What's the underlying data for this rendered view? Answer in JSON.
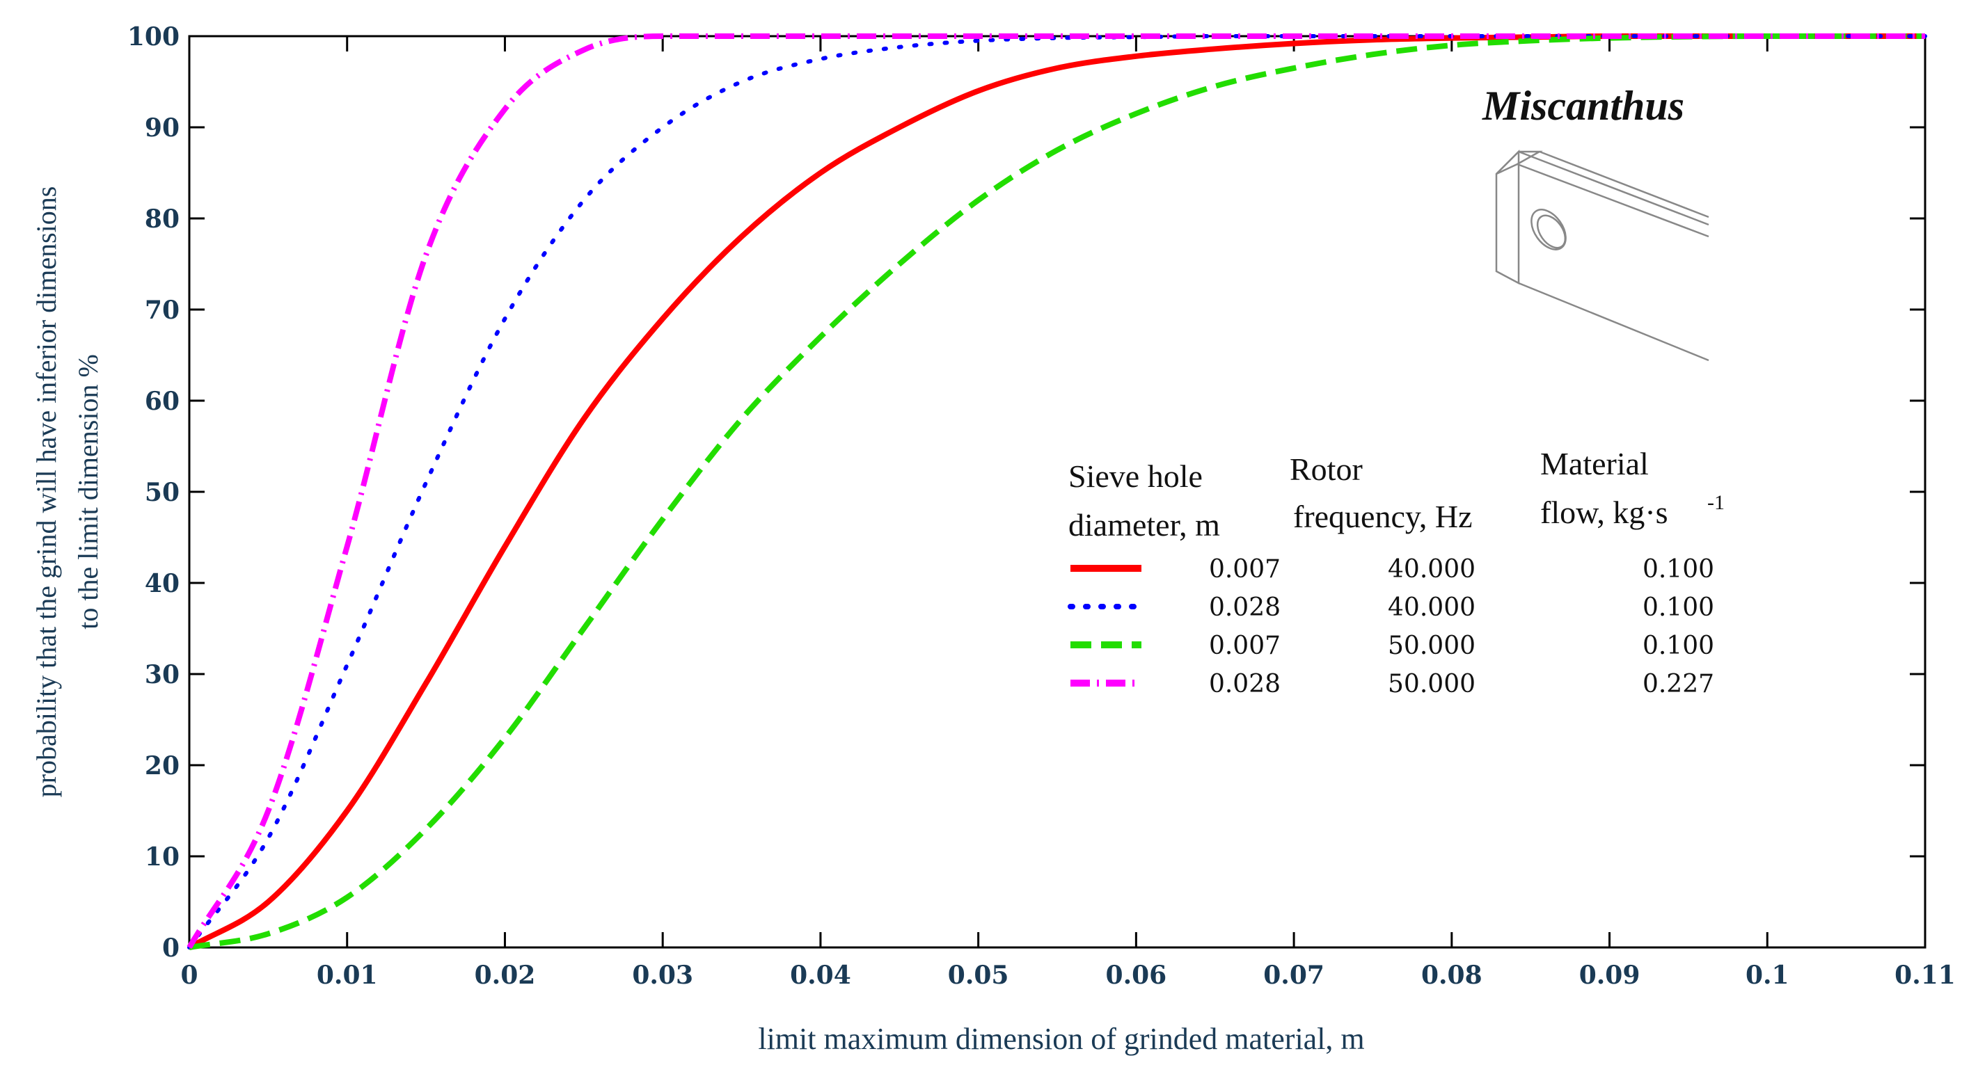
{
  "chart_data": {
    "type": "line",
    "title": "",
    "annotation": "Miscanthus",
    "xlabel": "limit maximum dimension of grinded material, m",
    "ylabel_lines": [
      "probability that the grind will have inferior dimensions",
      "to the limit dimension %"
    ],
    "xlim": [
      0,
      0.11
    ],
    "ylim": [
      0,
      100
    ],
    "x_ticks": [
      0,
      0.01,
      0.02,
      0.03,
      0.04,
      0.05,
      0.06,
      0.07,
      0.08,
      0.09,
      0.1,
      0.11
    ],
    "x_tick_labels": [
      "0",
      "0.01",
      "0.02",
      "0.03",
      "0.04",
      "0.05",
      "0.06",
      "0.07",
      "0.08",
      "0.09",
      "0.1",
      "0.11"
    ],
    "y_ticks": [
      0,
      10,
      20,
      30,
      40,
      50,
      60,
      70,
      80,
      90,
      100
    ],
    "y_tick_labels": [
      "0",
      "10",
      "20",
      "30",
      "40",
      "50",
      "60",
      "70",
      "80",
      "90",
      "100"
    ],
    "x": [
      0,
      0.005,
      0.01,
      0.015,
      0.02,
      0.025,
      0.03,
      0.035,
      0.04,
      0.045,
      0.05,
      0.055,
      0.06,
      0.065,
      0.07,
      0.075,
      0.08,
      0.085,
      0.09,
      0.1,
      0.11
    ],
    "legend": {
      "position": "center-right",
      "headers": [
        [
          "Sieve hole",
          "diameter, m"
        ],
        [
          "Rotor",
          "frequency, Hz"
        ],
        [
          "Material",
          "flow, kg·s"
        ]
      ],
      "flow_exponent": "-1"
    },
    "series": [
      {
        "name": "0.007 m / 40.000 Hz / 0.100",
        "sieve": "0.007",
        "frequency": "40.000",
        "flow": "0.100",
        "color": "#ff0000",
        "style": "solid",
        "values": [
          0,
          5,
          15,
          29,
          44,
          58,
          69,
          78,
          85,
          90,
          94,
          96.5,
          97.8,
          98.6,
          99.2,
          99.6,
          99.8,
          99.9,
          100,
          100,
          100
        ]
      },
      {
        "name": "0.028 m / 40.000 Hz / 0.100",
        "sieve": "0.028",
        "frequency": "40.000",
        "flow": "0.100",
        "color": "#0000ff",
        "style": "dotted",
        "values": [
          0,
          12,
          31,
          51,
          69,
          82,
          90,
          95,
          97.5,
          98.8,
          99.5,
          99.8,
          99.9,
          100,
          100,
          100,
          100,
          100,
          100,
          100,
          100
        ]
      },
      {
        "name": "0.007 m / 50.000 Hz / 0.100",
        "sieve": "0.007",
        "frequency": "50.000",
        "flow": "0.100",
        "color": "#22dd00",
        "style": "dashed",
        "values": [
          0,
          1.5,
          5.5,
          13,
          23,
          35,
          47,
          58,
          67,
          75,
          82,
          87.5,
          91.5,
          94.5,
          96.5,
          98,
          99,
          99.5,
          99.8,
          100,
          100
        ]
      },
      {
        "name": "0.028 m / 50.000 Hz / 0.227",
        "sieve": "0.028",
        "frequency": "50.000",
        "flow": "0.227",
        "color": "#ff00ff",
        "style": "dashdot",
        "values": [
          0,
          15,
          44,
          76,
          92,
          98.5,
          100,
          100,
          100,
          100,
          100,
          100,
          100,
          100,
          100,
          100,
          100,
          100,
          100,
          100,
          100
        ]
      }
    ]
  }
}
